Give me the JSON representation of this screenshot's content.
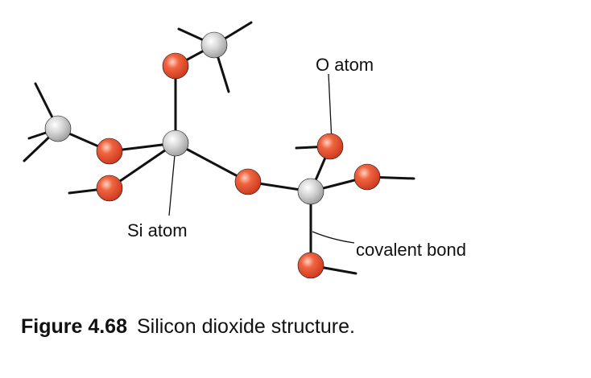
{
  "labels": {
    "o_atom": "O atom",
    "si_atom": "Si atom",
    "covalent_bond": "covalent bond"
  },
  "caption": {
    "number": "Figure 4.68",
    "text": "Silicon dioxide structure."
  },
  "colors": {
    "oxygen": "#e0492a",
    "silicon": "#c8c8c8",
    "bond": "#111111"
  }
}
